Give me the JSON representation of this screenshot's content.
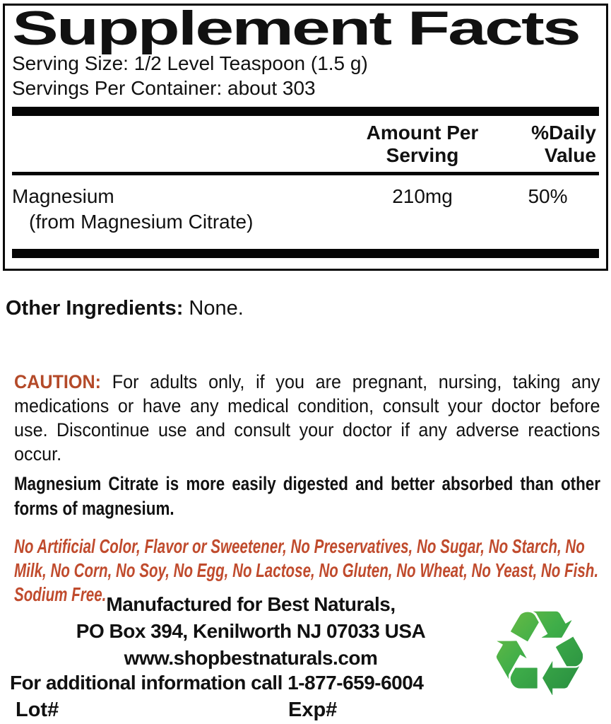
{
  "facts": {
    "title": "Supplement Facts",
    "serving_size": "Serving Size: 1/2 Level Teaspoon (1.5 g)",
    "servings_per_container": "Servings Per Container: about 303",
    "columns": {
      "amount": "Amount Per Serving",
      "daily_value": "%Daily Value"
    },
    "rows": [
      {
        "name": "Magnesium",
        "source": "(from Magnesium Citrate)",
        "amount": "210mg",
        "daily_value": "50%"
      }
    ]
  },
  "other_ingredients": {
    "label": "Other Ingredients:",
    "value": "None."
  },
  "caution": {
    "label": "CAUTION:",
    "text": "For adults only, if you are pregnant, nursing, taking any medications or have any medical condition, consult your doctor before use. Discontinue use and consult your doctor if any adverse reactions occur."
  },
  "absorption_note": "Magnesium Citrate is more easily digested and better absorbed than other forms of magnesium.",
  "free_of_statement": "No Artificial Color, Flavor or Sweetener, No Preservatives, No Sugar, No Starch, No Milk, No Corn, No Soy, No Egg, No Lactose, No Gluten, No Wheat, No Yeast, No Fish. Sodium Free.",
  "manufacturer": {
    "line1": "Manufactured for Best Naturals,",
    "line2": "PO Box 394, Kenilworth NJ 07033 USA",
    "website": "www.shopbestnaturals.com",
    "phone_line": "For additional information call 1-877-659-6004",
    "lot_label": "Lot#",
    "exp_label": "Exp#"
  },
  "icons": {
    "recycle": {
      "glyph": "♻",
      "color": "#2e9c40"
    }
  },
  "colors": {
    "caution_label": "#b44a29",
    "free_of_text": "#c04b2d",
    "rule_black": "#050505"
  }
}
